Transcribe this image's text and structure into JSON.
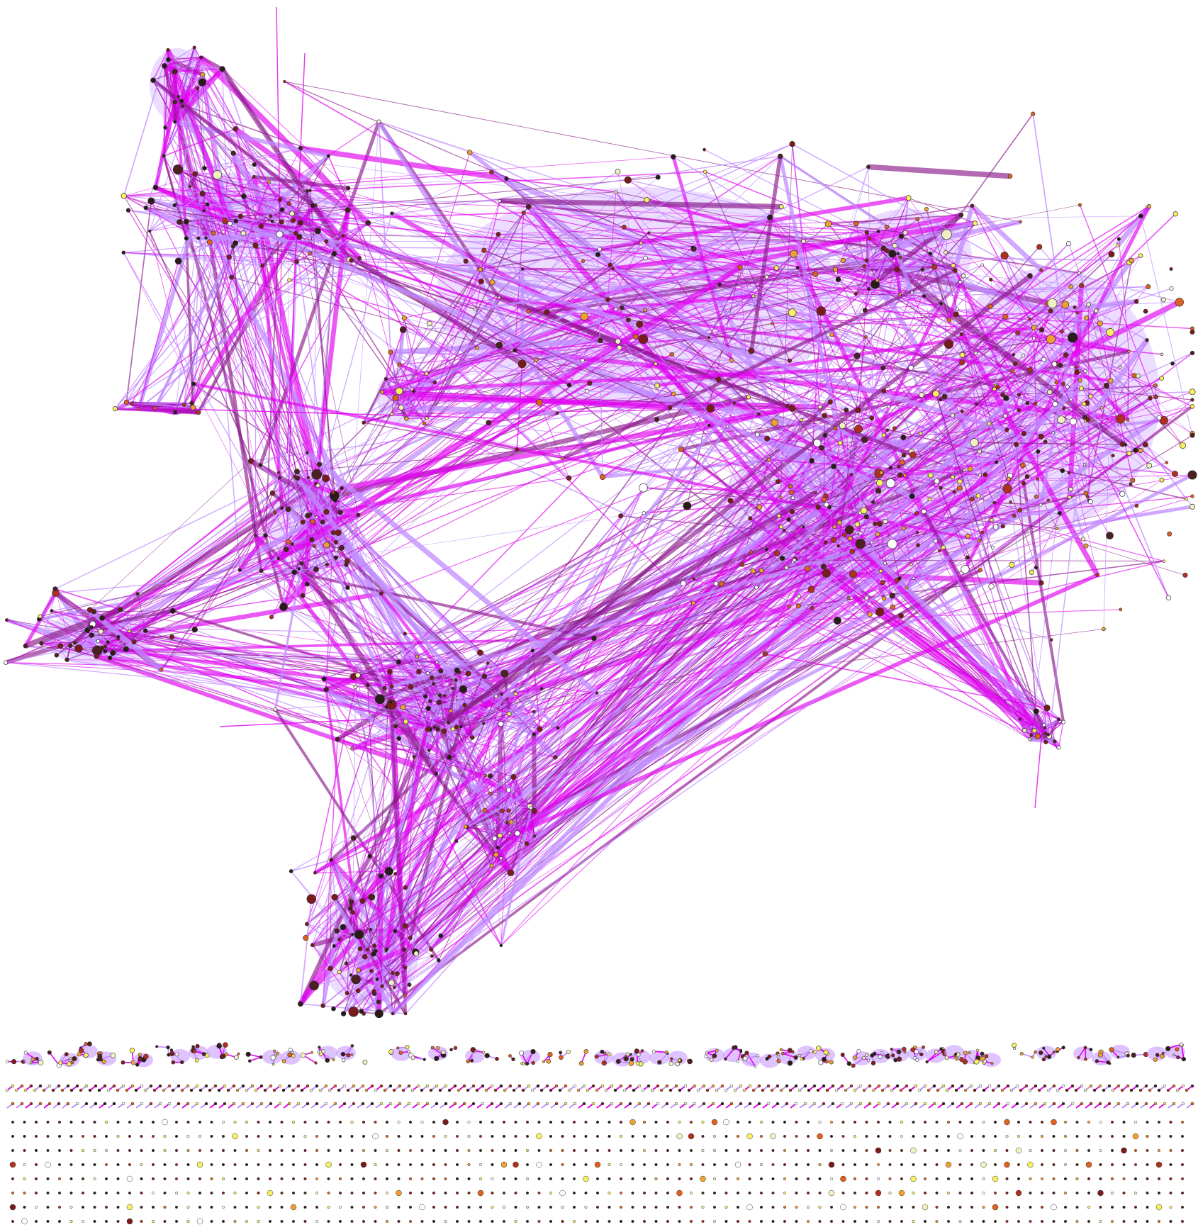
{
  "figure": {
    "kind": "network-graph-visualization",
    "background": "#ffffff"
  },
  "palette": {
    "edge_light": "#c08cff",
    "edge_bright": "#e000f0",
    "edge_dark": "#8a1a8a",
    "cluster_fill": "#c89bff",
    "node_outline": "#333333",
    "node_colors": [
      "#2a1a1a",
      "#4a2020",
      "#7a1a1a",
      "#b03020",
      "#e06020",
      "#f0a030",
      "#f8f060",
      "#f0f0c0",
      "#ffffff"
    ]
  },
  "main_component": {
    "description_hidden": true,
    "regions": [
      "upper-left-hub",
      "central-junction",
      "left-arm",
      "lower-hub",
      "right-dense-core",
      "right-satellite"
    ]
  },
  "small_components": {
    "rows": 3
  },
  "isolates": {
    "rows": 8
  }
}
